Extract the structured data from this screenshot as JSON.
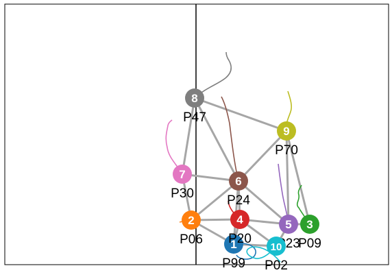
{
  "players": [
    {
      "number": "1",
      "label": "P99",
      "color": "#1f77b4"
    },
    {
      "number": "2",
      "label": "P06",
      "color": "#ff7f0e"
    },
    {
      "number": "3",
      "label": "P09",
      "color": "#2ca02c"
    },
    {
      "number": "4",
      "label": "P20",
      "color": "#d62728"
    },
    {
      "number": "5",
      "label": "P23",
      "color": "#9467bd"
    },
    {
      "number": "6",
      "label": "P24",
      "color": "#8c564b"
    },
    {
      "number": "7",
      "label": "P30",
      "color": "#e377c2"
    },
    {
      "number": "8",
      "label": "P47",
      "color": "#7f7f7f"
    },
    {
      "number": "9",
      "label": "P70",
      "color": "#bcbd22"
    },
    {
      "number": "10",
      "label": "P02",
      "color": "#17becf"
    }
  ],
  "connections": [
    [
      "8",
      "7"
    ],
    [
      "8",
      "6"
    ],
    [
      "8",
      "9"
    ],
    [
      "7",
      "6"
    ],
    [
      "7",
      "2"
    ],
    [
      "6",
      "9"
    ],
    [
      "6",
      "2"
    ],
    [
      "6",
      "4"
    ],
    [
      "6",
      "1"
    ],
    [
      "6",
      "5"
    ],
    [
      "9",
      "5"
    ],
    [
      "9",
      "3"
    ],
    [
      "2",
      "4"
    ],
    [
      "2",
      "1"
    ],
    [
      "4",
      "5"
    ],
    [
      "4",
      "10"
    ],
    [
      "4",
      "1"
    ],
    [
      "5",
      "3"
    ],
    [
      "5",
      "10"
    ],
    [
      "1",
      "10"
    ]
  ],
  "colors": {
    "edge": "#a6a6a6",
    "pitch_line": "#000000",
    "node_text": "#ffffff",
    "label_text": "#000000"
  }
}
